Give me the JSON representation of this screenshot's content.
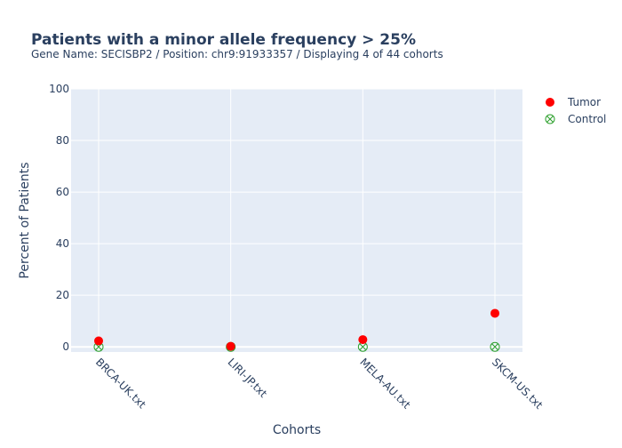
{
  "chart_data": {
    "type": "scatter",
    "title": "Patients with a minor allele frequency > 25%",
    "subtitle": "Gene Name: SECISBP2 / Position: chr9:91933357 / Displaying 4 of 44 cohorts",
    "xlabel": "Cohorts",
    "ylabel": "Percent of Patients",
    "categories": [
      "BRCA-UK.txt",
      "LIRI-JP.txt",
      "MELA-AU.txt",
      "SKCM-US.txt"
    ],
    "yticks": [
      0,
      20,
      40,
      60,
      80,
      100
    ],
    "ylim": [
      -2,
      100
    ],
    "grid": true,
    "legend_position": "top-right",
    "series": [
      {
        "name": "Tumor",
        "values": [
          2.3,
          0.2,
          2.8,
          13.0
        ],
        "color": "#ff0000",
        "marker": "filled-circle"
      },
      {
        "name": "Control",
        "values": [
          0,
          0,
          0,
          0
        ],
        "color": "#2ca02c",
        "marker": "circle-cross"
      }
    ]
  }
}
